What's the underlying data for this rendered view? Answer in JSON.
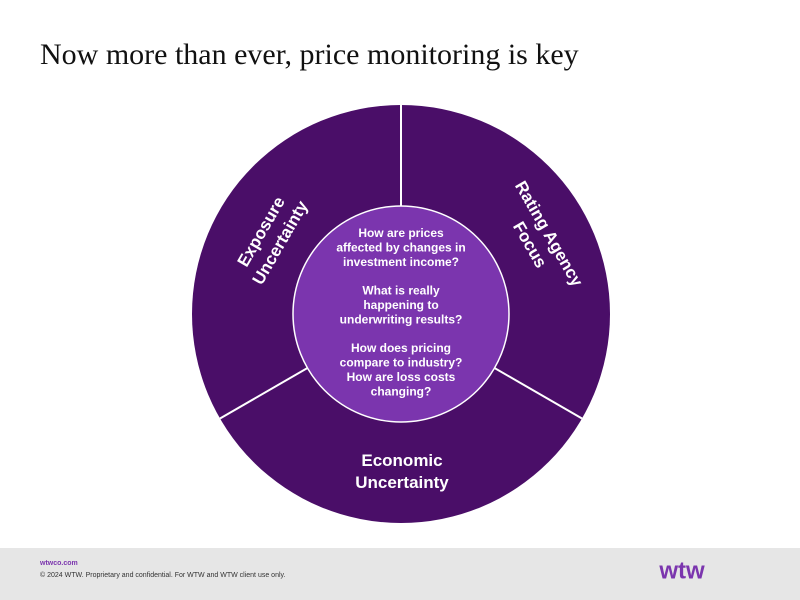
{
  "title": "Now more than ever, price monitoring is key",
  "segments": [
    {
      "lines": [
        "Exposure",
        "Uncertainty"
      ]
    },
    {
      "lines": [
        "Rating Agency",
        "Focus"
      ]
    },
    {
      "lines": [
        "Economic",
        "Uncertainty"
      ]
    }
  ],
  "center_questions": [
    [
      "How are prices",
      "affected by changes in",
      "investment income?"
    ],
    [
      "What is really",
      "happening to",
      "underwriting results?"
    ],
    [
      "How does pricing",
      "compare to industry?",
      "How are loss costs",
      "changing?"
    ]
  ],
  "footer": {
    "site": "wtwco.com",
    "legal": "© 2024 WTW. Proprietary and confidential. For WTW and WTW client use only.",
    "logo": "wtw"
  }
}
